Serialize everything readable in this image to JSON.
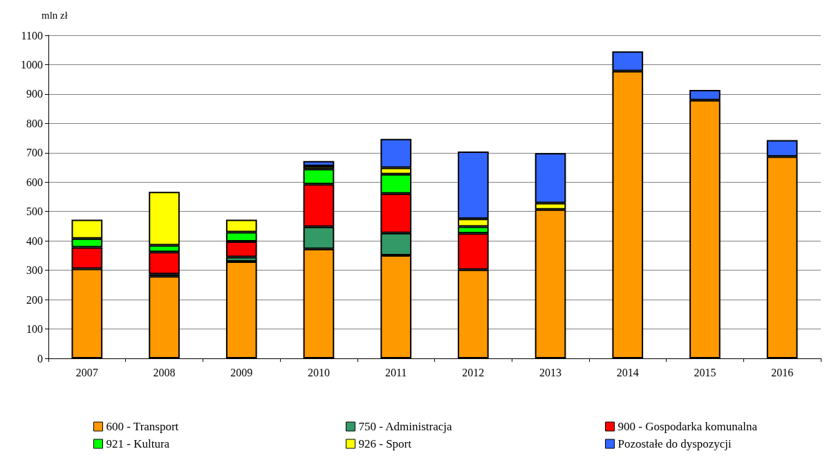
{
  "chart_data": {
    "type": "bar",
    "stacked": true,
    "ylabel": "mln zł",
    "categories": [
      "2007",
      "2008",
      "2009",
      "2010",
      "2011",
      "2012",
      "2013",
      "2014",
      "2015",
      "2016"
    ],
    "series": [
      {
        "name": "600 - Transport",
        "color": "#ff9900",
        "values": [
          305,
          280,
          330,
          373,
          351,
          302,
          507,
          978,
          879,
          687
        ]
      },
      {
        "name": "750 - Administracja",
        "color": "#339966",
        "values": [
          null,
          7,
          15,
          75,
          76,
          null,
          null,
          null,
          null,
          null
        ]
      },
      {
        "name": "900 - Gospodarka komunalna",
        "color": "#ff0000",
        "values": [
          73,
          75,
          53,
          145,
          134,
          124,
          null,
          null,
          null,
          null
        ]
      },
      {
        "name": "921 - Kultura",
        "color": "#00ff00",
        "values": [
          30,
          23,
          32,
          52,
          66,
          23,
          null,
          null,
          null,
          null
        ]
      },
      {
        "name": "926 - Sport",
        "color": "#ffff00",
        "values": [
          64,
          182,
          42,
          10,
          22,
          26,
          22,
          null,
          null,
          null
        ]
      },
      {
        "name": "Pozostałe do dyspozycji",
        "color": "#3366ff",
        "values": [
          null,
          null,
          null,
          17,
          98,
          229,
          170,
          67,
          35,
          56
        ]
      }
    ],
    "ylim": [
      0,
      1100
    ],
    "yticks": [
      0,
      100,
      200,
      300,
      400,
      500,
      600,
      700,
      800,
      900,
      1000,
      1100
    ],
    "grid": "y",
    "legend": "bottom"
  }
}
